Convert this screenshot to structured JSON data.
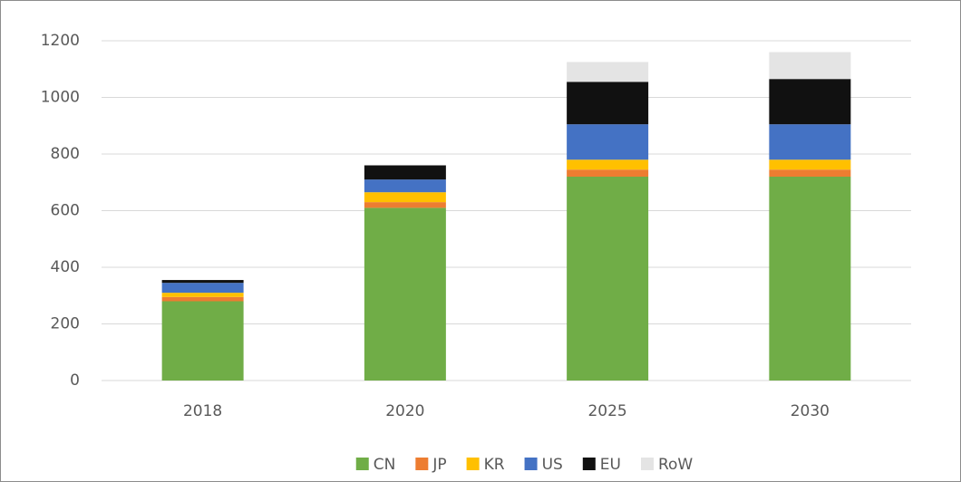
{
  "chart_data": {
    "type": "stacked_bar",
    "categories": [
      "2018",
      "2020",
      "2025",
      "2030"
    ],
    "series": [
      {
        "name": "CN",
        "color": "#70ad47",
        "values": [
          280,
          610,
          720,
          720
        ]
      },
      {
        "name": "JP",
        "color": "#ed7d31",
        "values": [
          15,
          20,
          25,
          25
        ]
      },
      {
        "name": "KR",
        "color": "#ffc000",
        "values": [
          15,
          35,
          35,
          35
        ]
      },
      {
        "name": "US",
        "color": "#4472c4",
        "values": [
          35,
          45,
          125,
          125
        ]
      },
      {
        "name": "EU",
        "color": "#111111",
        "values": [
          10,
          50,
          150,
          160
        ]
      },
      {
        "name": "RoW",
        "color": "#e4e4e4",
        "values": [
          0,
          0,
          70,
          95
        ]
      }
    ],
    "ylim": [
      0,
      1200
    ],
    "yticks": [
      0,
      200,
      400,
      600,
      800,
      1000,
      1200
    ],
    "grid": true,
    "legend": "bottom"
  }
}
